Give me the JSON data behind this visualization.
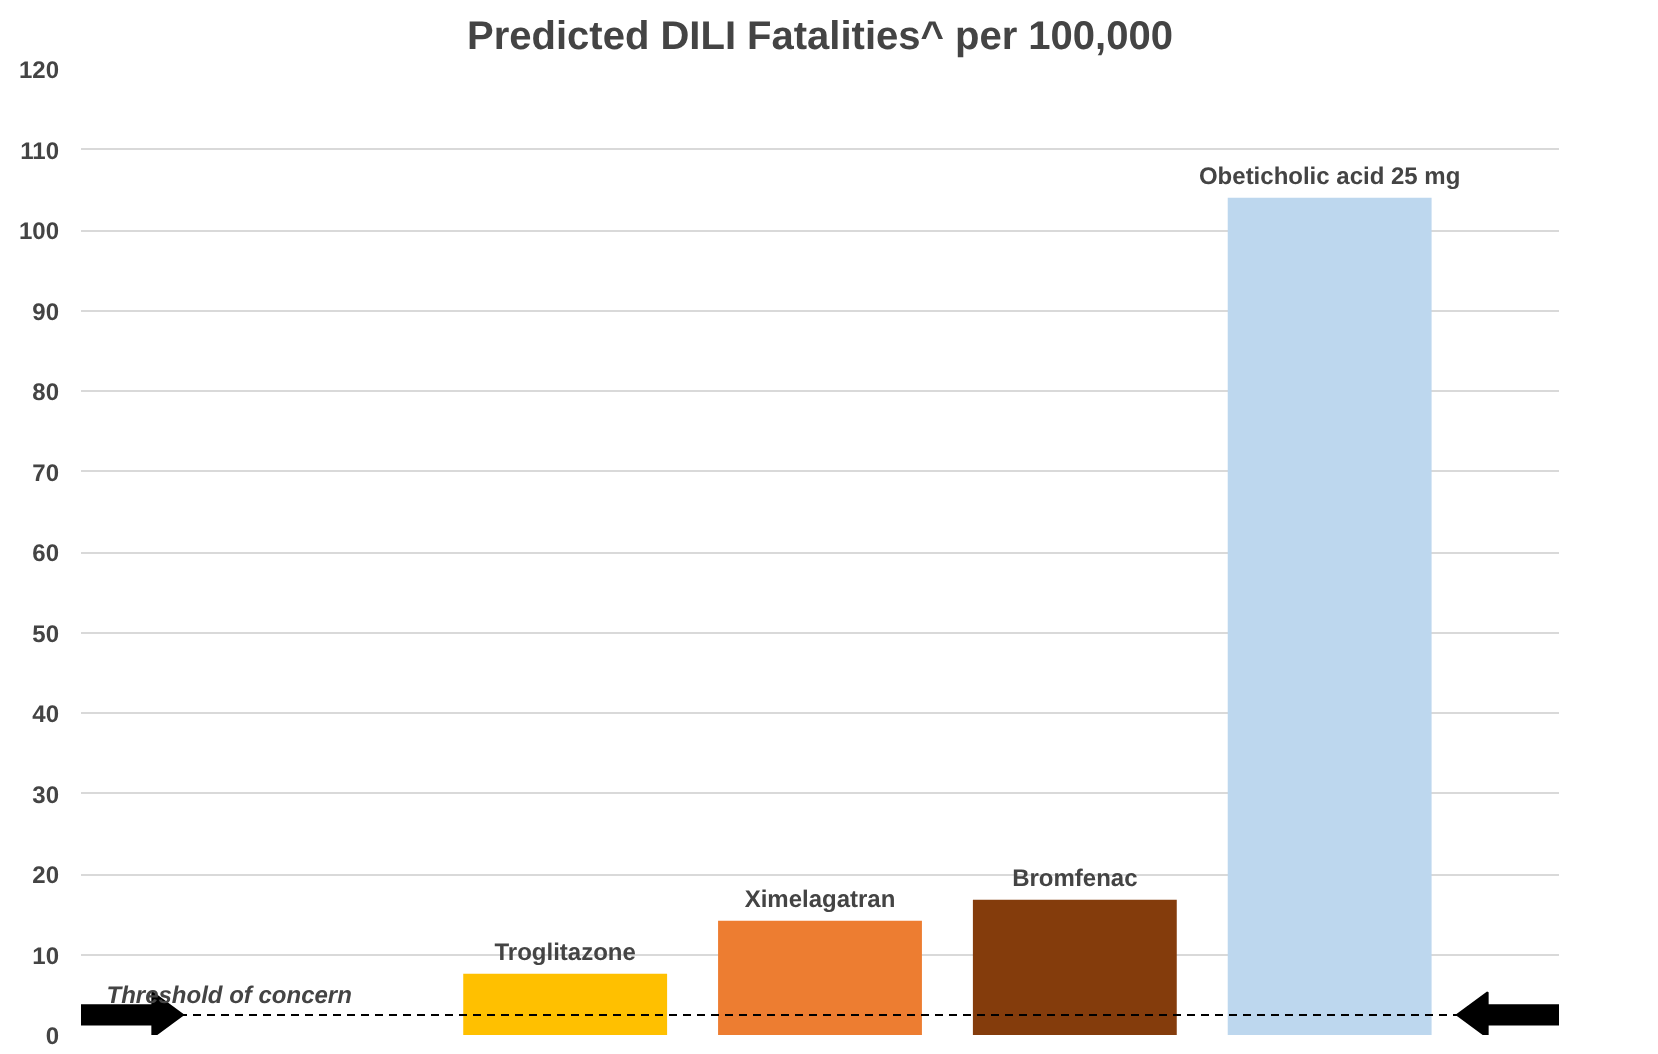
{
  "chart_data": {
    "type": "bar",
    "title": "Predicted DILI Fatalities^ per 100,000",
    "categories": [
      null,
      "Troglitazone",
      "Ximelagatran",
      "Bromfenac",
      "Obeticholic acid 25 mg"
    ],
    "values": [
      null,
      7.6,
      14.2,
      16.8,
      104
    ],
    "colors": [
      "#bdd7ee",
      "#ffc000",
      "#ed7d31",
      "#843c0c",
      "#bdd7ee"
    ],
    "ylim": [
      0,
      120
    ],
    "yticks": [
      0,
      10,
      20,
      30,
      40,
      50,
      60,
      70,
      80,
      90,
      100,
      110,
      120
    ],
    "grid": "y",
    "tick_labels": "y",
    "ref_lines": [
      {
        "axis": "y",
        "value": 2.5,
        "label": "Threshold of concern",
        "color": "#000000",
        "line_style": "dashed"
      }
    ]
  }
}
